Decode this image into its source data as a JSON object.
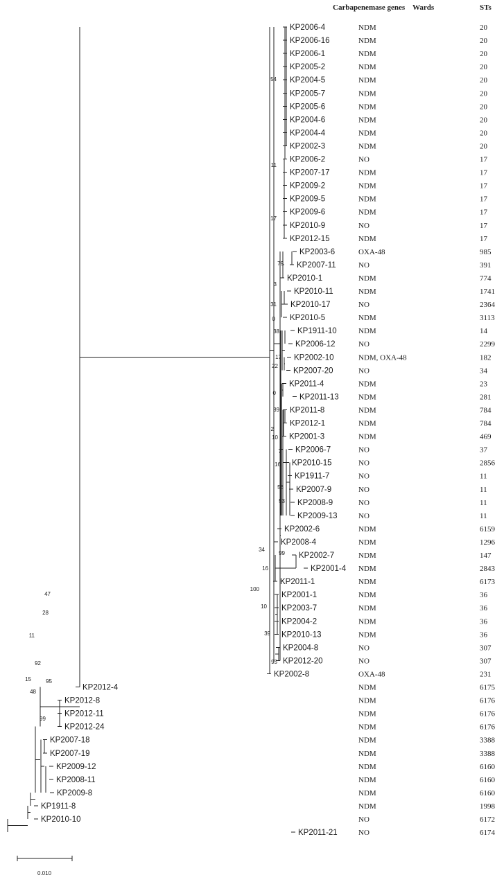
{
  "headers": {
    "genes": "Carbapenemase genes",
    "wards": "Wards",
    "sts": "STs"
  },
  "scale_bar_label": "0.010",
  "leaves": [
    {
      "name": "KP2006-4",
      "gene": "NDM",
      "st": "20"
    },
    {
      "name": "KP2006-16",
      "gene": "NDM",
      "st": "20"
    },
    {
      "name": "KP2006-1",
      "gene": "NDM",
      "st": "20"
    },
    {
      "name": "KP2005-2",
      "gene": "NDM",
      "st": "20"
    },
    {
      "name": "KP2004-5",
      "gene": "NDM",
      "st": "20"
    },
    {
      "name": "KP2005-7",
      "gene": "NDM",
      "st": "20"
    },
    {
      "name": "KP2005-6",
      "gene": "NDM",
      "st": "20"
    },
    {
      "name": "KP2004-6",
      "gene": "NDM",
      "st": "20"
    },
    {
      "name": "KP2004-4",
      "gene": "NDM",
      "st": "20"
    },
    {
      "name": "KP2002-3",
      "gene": "NDM",
      "st": "20"
    },
    {
      "name": "KP2006-2",
      "gene": "NO",
      "st": "17"
    },
    {
      "name": "KP2007-17",
      "gene": "NDM",
      "st": "17"
    },
    {
      "name": "KP2009-2",
      "gene": "NDM",
      "st": "17"
    },
    {
      "name": "KP2009-5",
      "gene": "NDM",
      "st": "17"
    },
    {
      "name": "KP2009-6",
      "gene": "NDM",
      "st": "17"
    },
    {
      "name": "KP2010-9",
      "gene": "NO",
      "st": "17"
    },
    {
      "name": "KP2012-15",
      "gene": "NDM",
      "st": "17"
    },
    {
      "name": "KP2003-6",
      "gene": "OXA-48",
      "st": "985"
    },
    {
      "name": "KP2007-11",
      "gene": "NO",
      "st": "391"
    },
    {
      "name": "KP2010-1",
      "gene": "NDM",
      "st": "774"
    },
    {
      "name": "KP2010-11",
      "gene": "NDM",
      "st": "1741"
    },
    {
      "name": "KP2010-17",
      "gene": "NO",
      "st": "2364"
    },
    {
      "name": "KP2010-5",
      "gene": "NDM",
      "st": "3113"
    },
    {
      "name": "KP1911-10",
      "gene": "NDM",
      "st": "14"
    },
    {
      "name": "KP2006-12",
      "gene": "NO",
      "st": "2299"
    },
    {
      "name": "KP2002-10",
      "gene": "NDM, OXA-48",
      "st": "182"
    },
    {
      "name": "KP2007-20",
      "gene": "NO",
      "st": "34"
    },
    {
      "name": "KP2011-4",
      "gene": "NDM",
      "st": "23"
    },
    {
      "name": "KP2011-13",
      "gene": "NDM",
      "st": "281"
    },
    {
      "name": "KP2011-8",
      "gene": "NDM",
      "st": "784"
    },
    {
      "name": "KP2012-1",
      "gene": "NDM",
      "st": "784"
    },
    {
      "name": "KP2001-3",
      "gene": "NDM",
      "st": "469"
    },
    {
      "name": "KP2006-7",
      "gene": "NO",
      "st": "37"
    },
    {
      "name": "KP2010-15",
      "gene": "NO",
      "st": "2856"
    },
    {
      "name": "KP1911-7",
      "gene": "NO",
      "st": "11"
    },
    {
      "name": "KP2007-9",
      "gene": "NO",
      "st": "11"
    },
    {
      "name": "KP2008-9",
      "gene": "NO",
      "st": "11"
    },
    {
      "name": "KP2009-13",
      "gene": "NO",
      "st": "11"
    },
    {
      "name": "KP2002-6",
      "gene": "NDM",
      "st": "6159"
    },
    {
      "name": "KP2008-4",
      "gene": "NDM",
      "st": "1296"
    },
    {
      "name": "KP2002-7",
      "gene": "NDM",
      "st": "147"
    },
    {
      "name": "KP2001-4",
      "gene": "NDM",
      "st": "2843"
    },
    {
      "name": "KP2011-1",
      "gene": "NDM",
      "st": "6173"
    },
    {
      "name": "KP2001-1",
      "gene": "NDM",
      "st": "36"
    },
    {
      "name": "KP2003-7",
      "gene": "NDM",
      "st": "36"
    },
    {
      "name": "KP2004-2",
      "gene": "NDM",
      "st": "36"
    },
    {
      "name": "KP2010-13",
      "gene": "NDM",
      "st": "36"
    },
    {
      "name": "KP2004-8",
      "gene": "NO",
      "st": "307"
    },
    {
      "name": "KP2012-20",
      "gene": "NO",
      "st": "307"
    },
    {
      "name": "KP2002-8",
      "gene": "OXA-48",
      "st": "231"
    },
    {
      "name": "KP2012-4",
      "gene": "NDM",
      "st": "6175"
    },
    {
      "name": "KP2012-8",
      "gene": "NDM",
      "st": "6176"
    },
    {
      "name": "KP2012-11",
      "gene": "NDM",
      "st": "6176"
    },
    {
      "name": "KP2012-24",
      "gene": "NDM",
      "st": "6176"
    },
    {
      "name": "KP2007-18",
      "gene": "NDM",
      "st": "3388"
    },
    {
      "name": "KP2007-19",
      "gene": "NDM",
      "st": "3388"
    },
    {
      "name": "KP2009-12",
      "gene": "NDM",
      "st": "6160"
    },
    {
      "name": "KP2008-11",
      "gene": "NDM",
      "st": "6160"
    },
    {
      "name": "KP2009-8",
      "gene": "NDM",
      "st": "6160"
    },
    {
      "name": "KP1911-8",
      "gene": "NDM",
      "st": "1998"
    },
    {
      "name": "KP2010-10",
      "gene": "NO",
      "st": "6172"
    },
    {
      "name": "KP2011-21",
      "gene": "NO",
      "st": "6174"
    }
  ],
  "support_values": [
    "54",
    "11",
    "17",
    "79",
    "3",
    "31",
    "0",
    "38",
    "17",
    "22",
    "0",
    "89",
    "2",
    "10",
    "7",
    "16",
    "56",
    "53",
    "34",
    "99",
    "16",
    "100",
    "10",
    "39",
    "95",
    "47",
    "28",
    "95",
    "11",
    "92",
    "15",
    "48",
    "99"
  ]
}
